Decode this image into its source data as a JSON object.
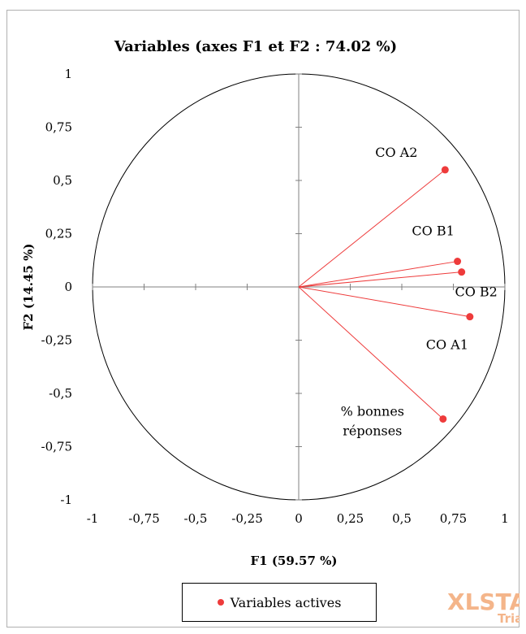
{
  "chart_data": {
    "type": "scatter",
    "title": "Variables (axes F1 et F2 : 74.02 %)",
    "xlabel": "F1 (59.57 %)",
    "ylabel": "F2 (14.45 %)",
    "xlim": [
      -1,
      1
    ],
    "ylim": [
      -1,
      1
    ],
    "xticks": [
      "-1",
      "-0,75",
      "-0,5",
      "-0,25",
      "0",
      "0,25",
      "0,5",
      "0,75",
      "1"
    ],
    "yticks": [
      "1",
      "0,75",
      "0,5",
      "0,25",
      "0",
      "-0,25",
      "-0,5",
      "-0,75",
      "-1"
    ],
    "grid": false,
    "correlation_circle": true,
    "series": [
      {
        "name": "Variables actives",
        "color": "#ee3b3b",
        "points": [
          {
            "label": "CO A2",
            "x": 0.71,
            "y": 0.55
          },
          {
            "label": "CO B1",
            "x": 0.77,
            "y": 0.12
          },
          {
            "label": "CO B2",
            "x": 0.79,
            "y": 0.07
          },
          {
            "label": "CO A1",
            "x": 0.83,
            "y": -0.14
          },
          {
            "label": "% bonnes réponses",
            "label_lines": [
              "% bonnes",
              "réponses"
            ],
            "x": 0.7,
            "y": -0.62
          }
        ]
      }
    ],
    "legend": {
      "placement": "bottom",
      "entries": [
        "Variables actives"
      ]
    }
  },
  "watermark": {
    "main": "XLSTAT",
    "sub": "Triat"
  }
}
